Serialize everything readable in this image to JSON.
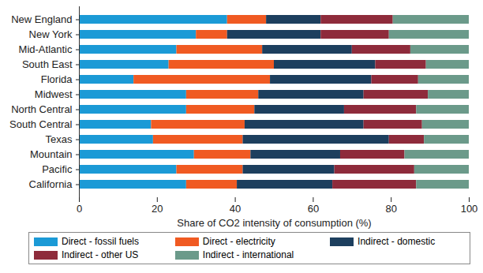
{
  "chart_data": {
    "type": "bar",
    "orientation": "horizontal",
    "stacked": true,
    "xlabel": "Share of CO2 intensity of consumption (%)",
    "categories": [
      "New England",
      "New York",
      "Mid-Atlantic",
      "South East",
      "Florida",
      "Midwest",
      "North Central",
      "South Central",
      "Texas",
      "Mountain",
      "Pacific",
      "California"
    ],
    "series": [
      {
        "name": "Direct - fossil fuels",
        "color": "#1b9ad6",
        "values": [
          38,
          30,
          25,
          23,
          14,
          27.5,
          27.5,
          18.5,
          19,
          29.5,
          25,
          27.5
        ]
      },
      {
        "name": "Direct - electricity",
        "color": "#f05a22",
        "values": [
          10,
          8,
          22,
          27,
          35,
          18.5,
          17.5,
          24,
          23,
          14.5,
          17,
          13
        ]
      },
      {
        "name": "Indirect - domestic",
        "color": "#1d3f5e",
        "values": [
          14,
          24,
          23,
          26,
          26,
          27,
          23,
          30.5,
          37.5,
          23,
          23.5,
          24.5
        ]
      },
      {
        "name": "Indirect - other US",
        "color": "#8e2b3b",
        "values": [
          18.5,
          17.5,
          15,
          13,
          12,
          16.5,
          18.5,
          15,
          9,
          16.5,
          20.5,
          21.5
        ]
      },
      {
        "name": "Indirect - international",
        "color": "#6b9a8a",
        "values": [
          19.5,
          20.5,
          15,
          11,
          13,
          10.5,
          13.5,
          12,
          11.5,
          16.5,
          14,
          13.5
        ]
      }
    ],
    "xlim": [
      0,
      100
    ],
    "xticks": [
      0,
      20,
      40,
      60,
      80,
      100
    ],
    "grid": false,
    "legend": "bottom"
  }
}
